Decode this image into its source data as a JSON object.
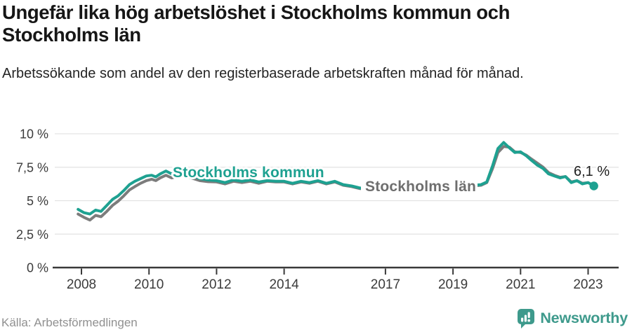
{
  "header": {
    "title": "Ungefär lika hög arbetslöshet i Stockholms kommun och Stockholms län",
    "subtitle": "Arbetssökande som andel av den registerbaserade arbetskraften månad för månad."
  },
  "footer": {
    "source": "Källa: Arbetsförmedlingen",
    "brand": "Newsworthy",
    "brand_icon": "newsworthy-speech-bubble-bar-chart-icon"
  },
  "colors": {
    "kommun": "#1ea191",
    "lan": "#7c7c7c",
    "lan_label": "#6e6e6e",
    "grid": "#e3e3e3",
    "axis": "#3a3a3a",
    "tick_text": "#3b3b3b",
    "annotation": "#1d1d1d",
    "brand": "#3e9a8c"
  },
  "chart_data": {
    "type": "line",
    "title": "Ungefär lika hög arbetslöshet i Stockholms kommun och Stockholms län",
    "subtitle": "Arbetssökande som andel av den registerbaserade arbetskraften månad för månad.",
    "xlabel": "",
    "ylabel": "",
    "unit": "%",
    "grid": "horizontal",
    "legend_position": "inline-on-lines",
    "x_ticks": [
      2008,
      2010,
      2012,
      2014,
      2017,
      2019,
      2021,
      2023
    ],
    "x_tick_labels": [
      "2008",
      "2010",
      "2012",
      "2014",
      "2017",
      "2019",
      "2021",
      "2023"
    ],
    "y_ticks": [
      0,
      2.5,
      5,
      7.5,
      10
    ],
    "y_tick_labels": [
      "0 %",
      "2,5 %",
      "5 %",
      "7,5 %",
      "10 %"
    ],
    "ylim": [
      0,
      10.5
    ],
    "xlim": [
      2007.9,
      2023.6
    ],
    "end_label": "6,1 %",
    "x": [
      2007.9,
      2008.08,
      2008.25,
      2008.42,
      2008.58,
      2008.75,
      2008.92,
      2009.08,
      2009.25,
      2009.42,
      2009.58,
      2009.75,
      2009.92,
      2010.08,
      2010.2,
      2010.33,
      2010.5,
      2010.67,
      2010.83,
      2011.0,
      2011.25,
      2011.5,
      2011.75,
      2012.0,
      2012.25,
      2012.5,
      2012.75,
      2013.0,
      2013.25,
      2013.5,
      2013.75,
      2014.0,
      2014.25,
      2014.5,
      2014.75,
      2015.0,
      2015.25,
      2015.5,
      2015.75,
      2016.0,
      2016.25,
      2016.5,
      2017.0,
      2017.5,
      2018.0,
      2018.5,
      2019.0,
      2019.33,
      2019.58,
      2019.83,
      2020.0,
      2020.17,
      2020.33,
      2020.5,
      2020.67,
      2020.83,
      2021.0,
      2021.17,
      2021.33,
      2021.5,
      2021.67,
      2021.83,
      2022.0,
      2022.17,
      2022.33,
      2022.5,
      2022.67,
      2022.83,
      2023.0,
      2023.17
    ],
    "series": [
      {
        "name": "Stockholms kommun",
        "color": "#1ea191",
        "values": [
          4.35,
          4.1,
          4.0,
          4.3,
          4.2,
          4.65,
          5.1,
          5.35,
          5.75,
          6.2,
          6.45,
          6.65,
          6.85,
          6.9,
          6.78,
          7.0,
          7.22,
          7.0,
          7.1,
          7.15,
          6.9,
          6.65,
          6.55,
          6.5,
          6.35,
          6.55,
          6.45,
          6.55,
          6.4,
          6.5,
          6.45,
          6.45,
          6.3,
          6.45,
          6.35,
          6.5,
          6.3,
          6.45,
          6.2,
          6.1,
          5.95,
          5.9,
          5.9,
          5.95,
          5.9,
          5.95,
          6.0,
          6.05,
          6.15,
          6.2,
          6.4,
          7.6,
          8.9,
          9.35,
          8.95,
          8.6,
          8.65,
          8.35,
          8.0,
          7.65,
          7.4,
          7.0,
          6.85,
          6.7,
          6.8,
          6.35,
          6.5,
          6.25,
          6.35,
          6.1
        ]
      },
      {
        "name": "Stockholms län",
        "color": "#7c7c7c",
        "values": [
          4.0,
          3.75,
          3.55,
          3.9,
          3.8,
          4.2,
          4.65,
          4.95,
          5.35,
          5.8,
          6.05,
          6.3,
          6.5,
          6.6,
          6.5,
          6.7,
          6.9,
          6.7,
          6.8,
          6.9,
          6.7,
          6.5,
          6.42,
          6.4,
          6.25,
          6.45,
          6.35,
          6.45,
          6.3,
          6.45,
          6.4,
          6.4,
          6.25,
          6.4,
          6.3,
          6.45,
          6.25,
          6.4,
          6.15,
          6.05,
          5.9,
          5.85,
          5.85,
          5.9,
          5.85,
          5.9,
          5.95,
          6.0,
          6.1,
          6.15,
          6.35,
          7.4,
          8.6,
          9.05,
          9.0,
          8.65,
          8.6,
          8.4,
          8.1,
          7.8,
          7.5,
          7.1,
          6.9,
          6.75,
          6.8,
          6.4,
          6.5,
          6.3,
          6.35,
          6.1
        ]
      }
    ]
  }
}
